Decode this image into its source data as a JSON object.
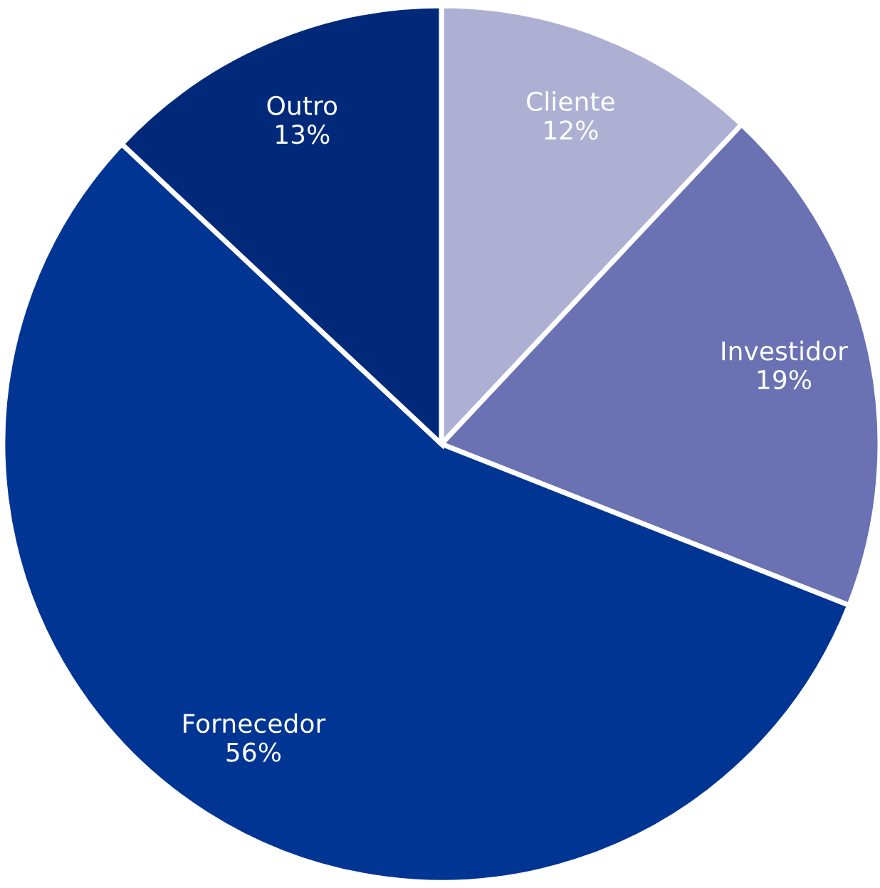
{
  "chart_data": {
    "type": "pie",
    "categories": [
      "Cliente",
      "Investidor",
      "Fornecedor",
      "Outro"
    ],
    "values": [
      12,
      19,
      56,
      13
    ],
    "value_labels": [
      "12%",
      "19%",
      "56%",
      "13%"
    ],
    "colors": [
      "#adb0d3",
      "#6a72b4",
      "#003594",
      "#00297a"
    ]
  }
}
